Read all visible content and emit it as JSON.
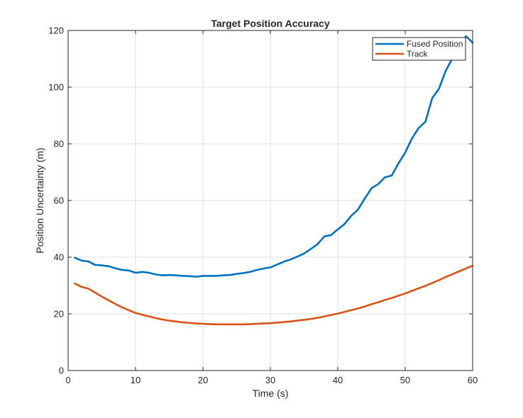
{
  "chart_data": {
    "type": "line",
    "title": "Target Position Accuracy",
    "xlabel": "Time (s)",
    "ylabel": "Position Uncertainty (m)",
    "xlim": [
      0,
      60
    ],
    "ylim": [
      0,
      120
    ],
    "xticks": [
      0,
      10,
      20,
      30,
      40,
      50,
      60
    ],
    "yticks": [
      0,
      20,
      40,
      60,
      80,
      100,
      120
    ],
    "grid": true,
    "legend_position": "top-right",
    "series": [
      {
        "name": "Fused Position",
        "color": "#0072BD",
        "x": [
          1,
          2,
          3,
          4,
          5,
          6,
          7,
          8,
          9,
          10,
          11,
          12,
          13,
          14,
          15,
          16,
          17,
          18,
          19,
          20,
          21,
          22,
          23,
          24,
          25,
          26,
          27,
          28,
          29,
          30,
          31,
          32,
          33,
          34,
          35,
          36,
          37,
          38,
          39,
          40,
          41,
          42,
          43,
          44,
          45,
          46,
          47,
          48,
          49,
          50,
          51,
          52,
          53,
          54,
          55,
          56,
          57,
          58,
          59,
          60
        ],
        "y": [
          39.8,
          38.8,
          38.5,
          37.3,
          37.1,
          36.8,
          36.1,
          35.5,
          35.3,
          34.5,
          34.8,
          34.5,
          33.9,
          33.6,
          33.7,
          33.6,
          33.4,
          33.3,
          33.1,
          33.4,
          33.4,
          33.4,
          33.6,
          33.7,
          34.1,
          34.4,
          34.8,
          35.5,
          36.0,
          36.4,
          37.4,
          38.4,
          39.2,
          40.2,
          41.3,
          42.9,
          44.6,
          47.3,
          47.8,
          49.8,
          51.7,
          54.6,
          56.8,
          60.7,
          64.3,
          65.8,
          68.2,
          68.8,
          73.1,
          76.9,
          81.9,
          85.6,
          87.8,
          96.1,
          99.4,
          105.7,
          110.2,
          113.0,
          118.0,
          115.7
        ]
      },
      {
        "name": "Track",
        "color": "#D95319",
        "x": [
          1,
          2,
          3,
          4,
          5,
          6,
          7,
          8,
          9,
          10,
          11,
          12,
          13,
          14,
          15,
          16,
          17,
          18,
          19,
          20,
          21,
          22,
          23,
          24,
          25,
          26,
          27,
          28,
          29,
          30,
          31,
          32,
          33,
          34,
          35,
          36,
          37,
          38,
          39,
          40,
          41,
          42,
          43,
          44,
          45,
          46,
          47,
          48,
          49,
          50,
          51,
          52,
          53,
          54,
          55,
          56,
          57,
          58,
          59,
          60
        ],
        "y": [
          30.7,
          29.5,
          28.9,
          27.5,
          26.1,
          24.8,
          23.5,
          22.3,
          21.3,
          20.3,
          19.7,
          19.1,
          18.5,
          18.0,
          17.6,
          17.3,
          17.0,
          16.8,
          16.6,
          16.5,
          16.4,
          16.3,
          16.3,
          16.3,
          16.3,
          16.3,
          16.4,
          16.5,
          16.6,
          16.7,
          16.9,
          17.1,
          17.3,
          17.6,
          17.9,
          18.2,
          18.6,
          19.1,
          19.6,
          20.1,
          20.7,
          21.3,
          21.9,
          22.6,
          23.4,
          24.1,
          24.9,
          25.6,
          26.4,
          27.2,
          28.1,
          29.0,
          29.9,
          30.9,
          31.9,
          33.0,
          34.0,
          35.0,
          36.0,
          37.0
        ]
      }
    ]
  }
}
